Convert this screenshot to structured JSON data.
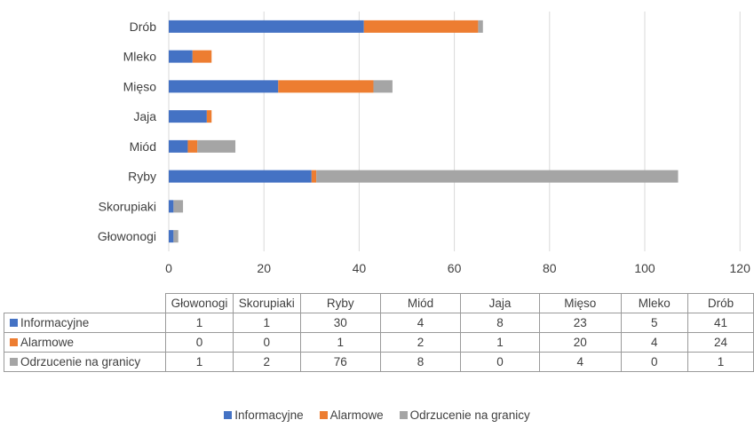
{
  "chart_data": {
    "type": "bar",
    "orientation": "horizontal",
    "stacked": true,
    "categories": [
      "Głowonogi",
      "Skorupiaki",
      "Ryby",
      "Miód",
      "Jaja",
      "Mięso",
      "Mleko",
      "Drób"
    ],
    "series": [
      {
        "name": "Informacyjne",
        "color": "#4472c4",
        "values": [
          1,
          1,
          30,
          4,
          8,
          23,
          5,
          41
        ]
      },
      {
        "name": "Alarmowe",
        "color": "#ed7d31",
        "values": [
          0,
          0,
          1,
          2,
          1,
          20,
          4,
          24
        ]
      },
      {
        "name": "Odrzucenie na granicy",
        "color": "#a5a5a5",
        "values": [
          1,
          2,
          76,
          8,
          0,
          4,
          0,
          1
        ]
      }
    ],
    "xlim": [
      0,
      120
    ],
    "xticks": [
      "0",
      "20",
      "40",
      "60",
      "80",
      "100",
      "120"
    ],
    "grid": "vertical",
    "legend": "bottom",
    "data_table": true
  }
}
